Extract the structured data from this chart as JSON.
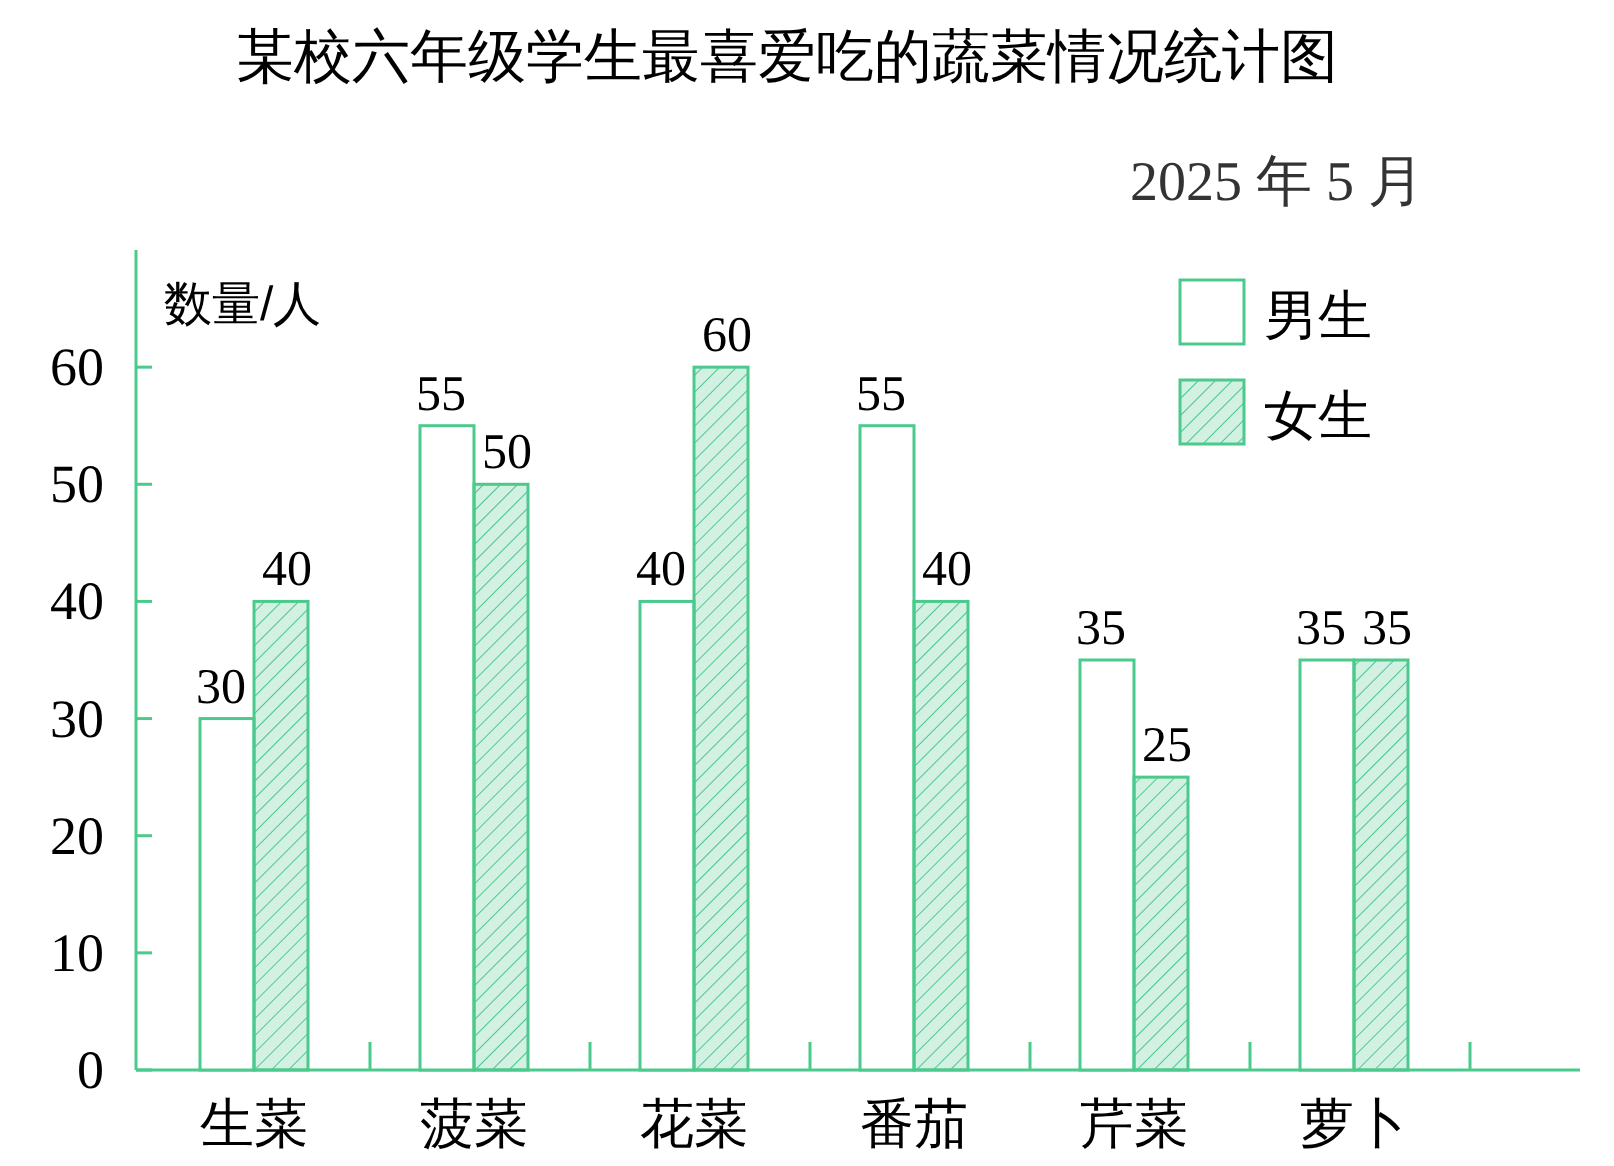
{
  "chart_data": {
    "type": "bar",
    "title": "某校六年级学生最喜爱吃的蔬菜情况统计图",
    "subtitle": "2025 年 5 月",
    "ylabel": "数量/人",
    "categories": [
      "生菜",
      "菠菜",
      "花菜",
      "番茄",
      "芹菜",
      "萝卜"
    ],
    "series": [
      {
        "name": "男生",
        "color": "#4cc98c",
        "values": [
          30,
          55,
          40,
          55,
          35,
          35
        ]
      },
      {
        "name": "女生",
        "color": "#4cc98c",
        "values": [
          40,
          50,
          60,
          40,
          25,
          35
        ]
      }
    ],
    "ylim": [
      0,
      70
    ],
    "yticks": [
      0,
      10,
      20,
      30,
      40,
      50,
      60
    ],
    "grid": false,
    "legend": "top right",
    "data_labels": true
  }
}
